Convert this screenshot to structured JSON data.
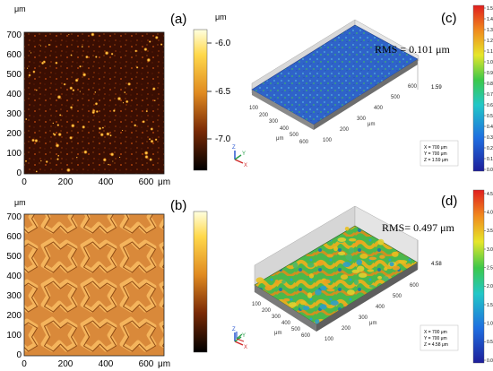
{
  "figure": {
    "panels": {
      "a": {
        "label": "(a)"
      },
      "b": {
        "label": "(b)"
      },
      "c": {
        "label": "(c)",
        "rms": "RMS = 0.101 μm",
        "z_marker": "1.59",
        "axis_unit": "μm",
        "info": [
          "X = 700 μm",
          "Y = 700 μm",
          "Z = 1.59 μm"
        ],
        "ticks": [
          "100",
          "200",
          "300",
          "400",
          "500",
          "600"
        ]
      },
      "d": {
        "label": "(d)",
        "rms": "RMS= 0.497 μm",
        "z_marker": "4.58",
        "axis_unit": "μm",
        "info": [
          "X = 700 μm",
          "Y = 700 μm",
          "Z = 4.58 μm"
        ],
        "ticks": [
          "100",
          "200",
          "300",
          "400",
          "500",
          "600"
        ]
      }
    },
    "map_axes": {
      "unit": "μm",
      "y_ticks": [
        "700",
        "600",
        "500",
        "400",
        "300",
        "200",
        "100",
        "0"
      ],
      "x_ticks": [
        "0",
        "200",
        "400",
        "600"
      ],
      "x_unit_label": "μm"
    },
    "colorbar_a": {
      "unit": "μm",
      "ticks": [
        "-6.0",
        "-6.5",
        "-7.0"
      ]
    },
    "colorbar_c": {
      "ticks": [
        "1.5",
        "1.4",
        "1.3",
        "1.2",
        "1.1",
        "1.0",
        "0.9",
        "0.8",
        "0.7",
        "0.6",
        "0.5",
        "0.4",
        "0.3",
        "0.2",
        "0.1",
        "0.0"
      ]
    },
    "colorbar_d": {
      "ticks": [
        "4.5",
        "4.0",
        "3.5",
        "3.0",
        "2.5",
        "2.0",
        "1.5",
        "1.0",
        "0.5",
        "0.0"
      ]
    },
    "triad": {
      "x": "X",
      "y": "Y",
      "z": "Z"
    }
  },
  "colors": {
    "heat_dark": "#2a0800",
    "heat_mid": "#b04a10",
    "heat_bright": "#ffd23a",
    "orange_base": "#d9893a",
    "orange_ridge": "#f4b45c",
    "blue_surface": "#2f63c9",
    "green_spot": "#49b86a"
  }
}
